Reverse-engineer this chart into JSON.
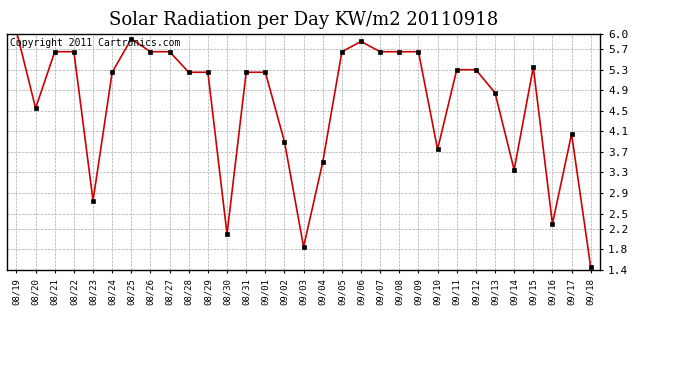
{
  "title": "Solar Radiation per Day KW/m2 20110918",
  "copyright_text": "Copyright 2011 Cartronics.com",
  "labels": [
    "08/19",
    "08/20",
    "08/21",
    "08/22",
    "08/23",
    "08/24",
    "08/25",
    "08/26",
    "08/27",
    "08/28",
    "08/29",
    "08/30",
    "08/31",
    "09/01",
    "09/02",
    "09/03",
    "09/04",
    "09/05",
    "09/06",
    "09/07",
    "09/08",
    "09/09",
    "09/10",
    "09/11",
    "09/12",
    "09/13",
    "09/14",
    "09/15",
    "09/16",
    "09/17",
    "09/18"
  ],
  "values": [
    6.05,
    4.55,
    5.65,
    5.65,
    2.75,
    5.25,
    5.9,
    5.65,
    5.65,
    5.25,
    5.25,
    2.1,
    5.25,
    5.25,
    3.9,
    1.85,
    3.5,
    5.65,
    5.85,
    5.65,
    5.65,
    5.65,
    3.75,
    5.3,
    5.3,
    4.85,
    3.35,
    5.35,
    2.3,
    4.05,
    1.45
  ],
  "line_color": "#cc0000",
  "marker": "s",
  "marker_size": 2.5,
  "ylim_min": 1.4,
  "ylim_max": 6.0,
  "yticks": [
    1.4,
    1.8,
    2.2,
    2.5,
    2.9,
    3.3,
    3.7,
    4.1,
    4.5,
    4.9,
    5.3,
    5.7,
    6.0
  ],
  "bg_color": "#ffffff",
  "grid_color": "#aaaaaa",
  "title_fontsize": 13,
  "copyright_fontsize": 7
}
